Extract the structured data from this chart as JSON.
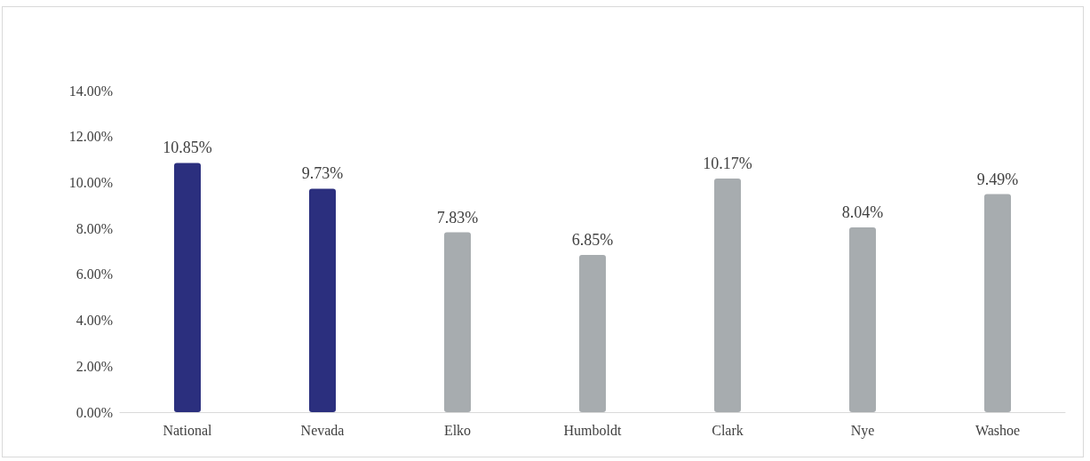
{
  "chart_data": {
    "type": "bar",
    "categories": [
      "National",
      "Nevada",
      "Elko",
      "Humboldt",
      "Clark",
      "Nye",
      "Washoe"
    ],
    "values": [
      10.85,
      9.73,
      7.83,
      6.85,
      10.17,
      8.04,
      9.49
    ],
    "colors": [
      "#2b2f7e",
      "#2b2f7e",
      "#a7acaf",
      "#a7acaf",
      "#a7acaf",
      "#a7acaf",
      "#a7acaf"
    ],
    "value_labels": [
      "10.85%",
      "9.73%",
      "7.83%",
      "6.85%",
      "10.17%",
      "8.04%",
      "9.49%"
    ],
    "ylim": [
      0,
      14
    ],
    "yticks": [
      {
        "value": 0,
        "label": "0.00%"
      },
      {
        "value": 2,
        "label": "2.00%"
      },
      {
        "value": 4,
        "label": "4.00%"
      },
      {
        "value": 6,
        "label": "6.00%"
      },
      {
        "value": 8,
        "label": "8.00%"
      },
      {
        "value": 10,
        "label": "10.00%"
      },
      {
        "value": 12,
        "label": "12.00%"
      },
      {
        "value": 14,
        "label": "14.00%"
      }
    ],
    "grid": false
  }
}
